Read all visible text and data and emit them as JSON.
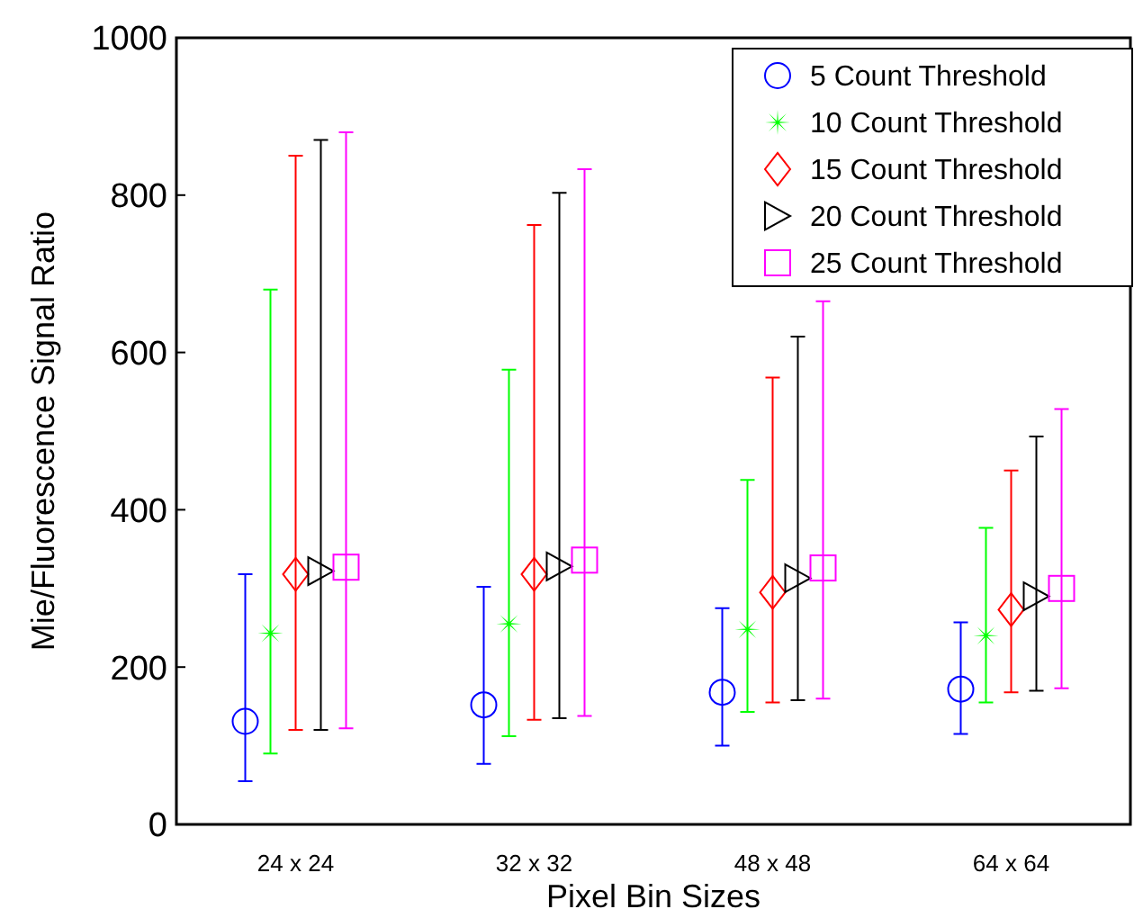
{
  "chart_data": {
    "type": "scatter",
    "xlabel": "Pixel Bin Sizes",
    "ylabel": "Mie/Fluorescence Signal Ratio",
    "categories": [
      "24 x 24",
      "32 x 32",
      "48 x 48",
      "64 x 64"
    ],
    "ylim": [
      0,
      1000
    ],
    "yticks": [
      0,
      200,
      400,
      600,
      800,
      1000
    ],
    "grid": false,
    "legend": "top right",
    "series": [
      {
        "name": "5 Count Threshold",
        "color": "#0000ff",
        "marker": "circle",
        "values": [
          131,
          152,
          168,
          172
        ],
        "errors": [
          [
            55,
            318
          ],
          [
            77,
            302
          ],
          [
            100,
            275
          ],
          [
            115,
            257
          ]
        ]
      },
      {
        "name": "10 Count Threshold",
        "color": "#00ff00",
        "marker": "star",
        "values": [
          243,
          255,
          248,
          240
        ],
        "errors": [
          [
            90,
            680
          ],
          [
            112,
            578
          ],
          [
            143,
            438
          ],
          [
            155,
            377
          ]
        ]
      },
      {
        "name": "15 Count Threshold",
        "color": "#ff0000",
        "marker": "diamond",
        "values": [
          318,
          318,
          295,
          273
        ],
        "errors": [
          [
            120,
            850
          ],
          [
            133,
            762
          ],
          [
            155,
            568
          ],
          [
            168,
            450
          ]
        ]
      },
      {
        "name": "20 Count Threshold",
        "color": "#000000",
        "marker": "triangle",
        "values": [
          322,
          328,
          313,
          290
        ],
        "errors": [
          [
            120,
            870
          ],
          [
            135,
            803
          ],
          [
            158,
            620
          ],
          [
            170,
            493
          ]
        ]
      },
      {
        "name": "25 Count Threshold",
        "color": "#ff00ff",
        "marker": "square",
        "values": [
          327,
          336,
          326,
          300
        ],
        "errors": [
          [
            122,
            880
          ],
          [
            138,
            833
          ],
          [
            160,
            665
          ],
          [
            173,
            528
          ]
        ]
      }
    ]
  }
}
